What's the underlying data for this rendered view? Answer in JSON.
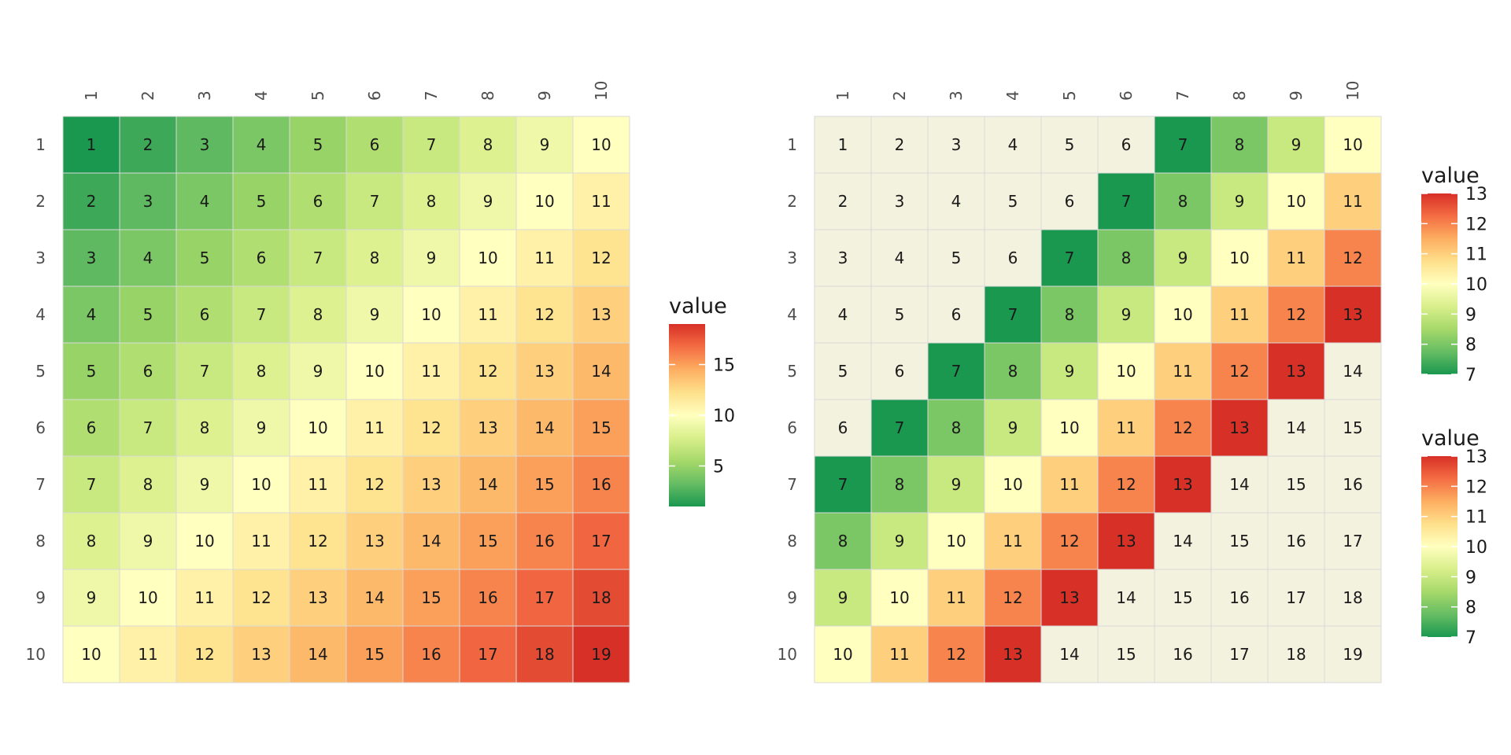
{
  "palette": [
    "#1a9850",
    "#66bd63",
    "#a6d96a",
    "#d9ef8b",
    "#ffffbf",
    "#fee08b",
    "#fdae61",
    "#f46d43",
    "#d73027"
  ],
  "na_fill": "#f2f2de",
  "grid_line": "#d9d9d9",
  "chart_data": [
    {
      "type": "heatmap",
      "rows": [
        "1",
        "2",
        "3",
        "4",
        "5",
        "6",
        "7",
        "8",
        "9",
        "10"
      ],
      "cols": [
        "1",
        "2",
        "3",
        "4",
        "5",
        "6",
        "7",
        "8",
        "9",
        "10"
      ],
      "values": [
        [
          1,
          2,
          3,
          4,
          5,
          6,
          7,
          8,
          9,
          10
        ],
        [
          2,
          3,
          4,
          5,
          6,
          7,
          8,
          9,
          10,
          11
        ],
        [
          3,
          4,
          5,
          6,
          7,
          8,
          9,
          10,
          11,
          12
        ],
        [
          4,
          5,
          6,
          7,
          8,
          9,
          10,
          11,
          12,
          13
        ],
        [
          5,
          6,
          7,
          8,
          9,
          10,
          11,
          12,
          13,
          14
        ],
        [
          6,
          7,
          8,
          9,
          10,
          11,
          12,
          13,
          14,
          15
        ],
        [
          7,
          8,
          9,
          10,
          11,
          12,
          13,
          14,
          15,
          16
        ],
        [
          8,
          9,
          10,
          11,
          12,
          13,
          14,
          15,
          16,
          17
        ],
        [
          9,
          10,
          11,
          12,
          13,
          14,
          15,
          16,
          17,
          18
        ],
        [
          10,
          11,
          12,
          13,
          14,
          15,
          16,
          17,
          18,
          19
        ]
      ],
      "fill_range": [
        1,
        19
      ],
      "legend": {
        "title": "value",
        "ticks": [
          5,
          10,
          15
        ]
      }
    },
    {
      "type": "heatmap",
      "rows": [
        "1",
        "2",
        "3",
        "4",
        "5",
        "6",
        "7",
        "8",
        "9",
        "10"
      ],
      "cols": [
        "1",
        "2",
        "3",
        "4",
        "5",
        "6",
        "7",
        "8",
        "9",
        "10"
      ],
      "values": [
        [
          1,
          2,
          3,
          4,
          5,
          6,
          7,
          8,
          9,
          10
        ],
        [
          2,
          3,
          4,
          5,
          6,
          7,
          8,
          9,
          10,
          11
        ],
        [
          3,
          4,
          5,
          6,
          7,
          8,
          9,
          10,
          11,
          12
        ],
        [
          4,
          5,
          6,
          7,
          8,
          9,
          10,
          11,
          12,
          13
        ],
        [
          5,
          6,
          7,
          8,
          9,
          10,
          11,
          12,
          13,
          14
        ],
        [
          6,
          7,
          8,
          9,
          10,
          11,
          12,
          13,
          14,
          15
        ],
        [
          7,
          8,
          9,
          10,
          11,
          12,
          13,
          14,
          15,
          16
        ],
        [
          8,
          9,
          10,
          11,
          12,
          13,
          14,
          15,
          16,
          17
        ],
        [
          9,
          10,
          11,
          12,
          13,
          14,
          15,
          16,
          17,
          18
        ],
        [
          10,
          11,
          12,
          13,
          14,
          15,
          16,
          17,
          18,
          19
        ]
      ],
      "fill_range": [
        7,
        13
      ],
      "legends": [
        {
          "title": "value",
          "ticks": [
            7,
            8,
            9,
            10,
            11,
            12,
            13
          ]
        },
        {
          "title": "value",
          "ticks": [
            7,
            8,
            9,
            10,
            11,
            12,
            13
          ]
        }
      ]
    }
  ]
}
